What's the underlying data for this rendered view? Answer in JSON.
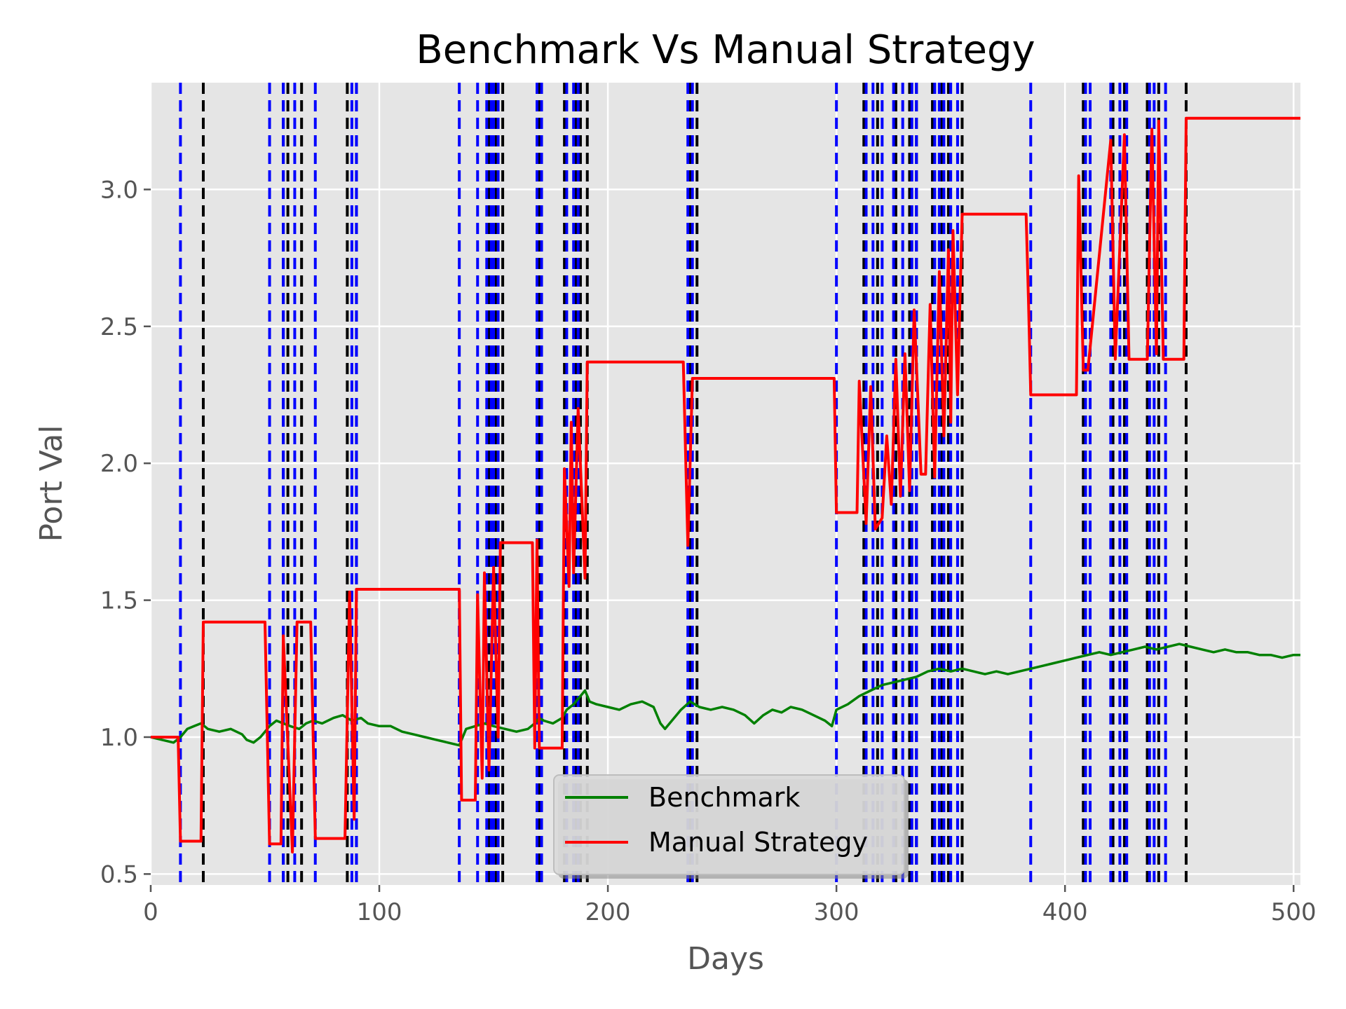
{
  "chart_data": {
    "type": "line",
    "title": "Benchmark Vs Manual Strategy",
    "xlabel": "Days",
    "ylabel": "Port Val",
    "xlim": [
      0,
      503
    ],
    "ylim": [
      0.46,
      3.39
    ],
    "x_ticks": [
      0,
      100,
      200,
      300,
      400,
      500
    ],
    "x_tick_labels": [
      "0",
      "100",
      "200",
      "300",
      "400",
      "500"
    ],
    "y_ticks": [
      0.5,
      1.0,
      1.5,
      2.0,
      2.5,
      3.0
    ],
    "y_tick_labels": [
      "0.5",
      "1.0",
      "1.5",
      "2.0",
      "2.5",
      "3.0"
    ],
    "grid": true,
    "legend_position": "lower-center",
    "background_color": "#e5e5e5",
    "grid_color": "#ffffff",
    "series": [
      {
        "name": "Benchmark",
        "color": "#008000",
        "x": [
          0,
          5,
          10,
          13,
          16,
          19,
          22,
          25,
          30,
          35,
          40,
          42,
          45,
          48,
          50,
          52,
          55,
          58,
          61,
          65,
          68,
          71,
          75,
          80,
          84,
          88,
          92,
          95,
          100,
          105,
          110,
          115,
          120,
          125,
          130,
          135,
          138,
          142,
          146,
          150,
          155,
          160,
          165,
          168,
          170,
          172,
          176,
          180,
          182,
          185,
          188,
          190,
          192,
          195,
          200,
          205,
          210,
          215,
          220,
          223,
          225,
          228,
          232,
          236,
          240,
          245,
          250,
          255,
          260,
          264,
          268,
          272,
          276,
          280,
          285,
          290,
          295,
          298,
          300,
          305,
          310,
          315,
          320,
          325,
          330,
          335,
          340,
          345,
          350,
          355,
          360,
          365,
          370,
          375,
          380,
          385,
          390,
          395,
          400,
          405,
          410,
          415,
          420,
          425,
          430,
          435,
          440,
          445,
          450,
          455,
          460,
          465,
          470,
          475,
          480,
          485,
          490,
          495,
          500,
          503
        ],
        "y": [
          1.0,
          0.99,
          0.98,
          1.0,
          1.03,
          1.04,
          1.05,
          1.03,
          1.02,
          1.03,
          1.01,
          0.99,
          0.98,
          1.0,
          1.02,
          1.04,
          1.06,
          1.05,
          1.04,
          1.03,
          1.05,
          1.06,
          1.05,
          1.07,
          1.08,
          1.06,
          1.07,
          1.05,
          1.04,
          1.04,
          1.02,
          1.01,
          1.0,
          0.99,
          0.98,
          0.97,
          1.03,
          1.04,
          1.05,
          1.04,
          1.03,
          1.02,
          1.03,
          1.05,
          1.07,
          1.06,
          1.05,
          1.07,
          1.1,
          1.12,
          1.15,
          1.17,
          1.13,
          1.12,
          1.11,
          1.1,
          1.12,
          1.13,
          1.11,
          1.05,
          1.03,
          1.06,
          1.1,
          1.13,
          1.11,
          1.1,
          1.11,
          1.1,
          1.08,
          1.05,
          1.08,
          1.1,
          1.09,
          1.11,
          1.1,
          1.08,
          1.06,
          1.04,
          1.1,
          1.12,
          1.15,
          1.17,
          1.19,
          1.2,
          1.21,
          1.22,
          1.24,
          1.25,
          1.24,
          1.25,
          1.24,
          1.23,
          1.24,
          1.23,
          1.24,
          1.25,
          1.26,
          1.27,
          1.28,
          1.29,
          1.3,
          1.31,
          1.3,
          1.31,
          1.32,
          1.33,
          1.32,
          1.33,
          1.34,
          1.33,
          1.32,
          1.31,
          1.32,
          1.31,
          1.31,
          1.3,
          1.3,
          1.29,
          1.3,
          1.3
        ]
      },
      {
        "name": "Manual Strategy",
        "color": "#ff0000",
        "x": [
          0,
          12,
          13,
          22,
          23,
          50,
          52,
          57,
          58,
          62,
          64,
          70,
          72,
          85,
          87,
          89,
          90,
          135,
          136,
          142,
          143,
          145,
          146,
          148,
          150,
          152,
          153,
          167,
          168,
          169,
          170,
          180,
          181,
          183,
          184,
          185,
          187,
          190,
          191,
          233,
          235,
          237,
          239,
          299,
          300,
          309,
          310,
          313,
          315,
          317,
          320,
          322,
          324,
          326,
          328,
          330,
          332,
          334,
          337,
          339,
          341,
          343,
          345,
          347,
          349,
          350,
          351,
          353,
          355,
          383,
          384,
          385,
          405,
          406,
          408,
          410,
          420,
          422,
          426,
          428,
          436,
          438,
          440,
          441,
          443,
          452,
          453,
          503
        ],
        "y": [
          1.0,
          1.0,
          0.62,
          0.62,
          1.42,
          1.42,
          0.61,
          0.61,
          1.37,
          0.58,
          1.42,
          1.42,
          0.63,
          0.63,
          1.53,
          0.7,
          1.54,
          1.54,
          0.77,
          0.77,
          1.52,
          0.85,
          1.6,
          0.88,
          1.62,
          1.0,
          1.71,
          1.71,
          0.96,
          1.72,
          0.96,
          0.96,
          1.98,
          1.55,
          2.15,
          1.6,
          2.2,
          1.58,
          2.37,
          2.37,
          1.7,
          2.31,
          2.31,
          2.31,
          1.82,
          1.82,
          2.3,
          1.78,
          2.28,
          1.76,
          1.8,
          2.1,
          1.85,
          2.38,
          1.88,
          2.4,
          1.9,
          2.56,
          1.96,
          1.96,
          2.58,
          1.95,
          2.7,
          2.1,
          2.78,
          2.15,
          2.85,
          2.25,
          2.91,
          2.91,
          2.6,
          2.25,
          2.25,
          3.05,
          2.34,
          2.34,
          3.18,
          2.38,
          3.2,
          2.38,
          2.38,
          3.22,
          2.4,
          3.25,
          2.38,
          2.38,
          3.26,
          3.26
        ]
      }
    ],
    "vlines_blue": {
      "color": "#0000ff",
      "x": [
        13,
        52,
        58,
        63,
        72,
        88,
        90,
        135,
        143,
        147,
        149,
        150,
        152,
        169,
        171,
        182,
        185,
        187,
        235,
        237,
        300,
        313,
        316,
        320,
        325,
        329,
        333,
        335,
        343,
        345,
        347,
        350,
        353,
        385,
        409,
        411,
        420,
        424,
        427,
        437,
        439,
        444
      ]
    },
    "vlines_black": {
      "color": "#000000",
      "x": [
        23,
        58,
        60,
        66,
        86,
        90,
        148,
        151,
        154,
        170,
        181,
        186,
        188,
        191,
        236,
        239,
        312,
        318,
        326,
        332,
        335,
        342,
        346,
        349,
        355,
        408,
        421,
        426,
        436,
        441,
        453
      ]
    }
  }
}
